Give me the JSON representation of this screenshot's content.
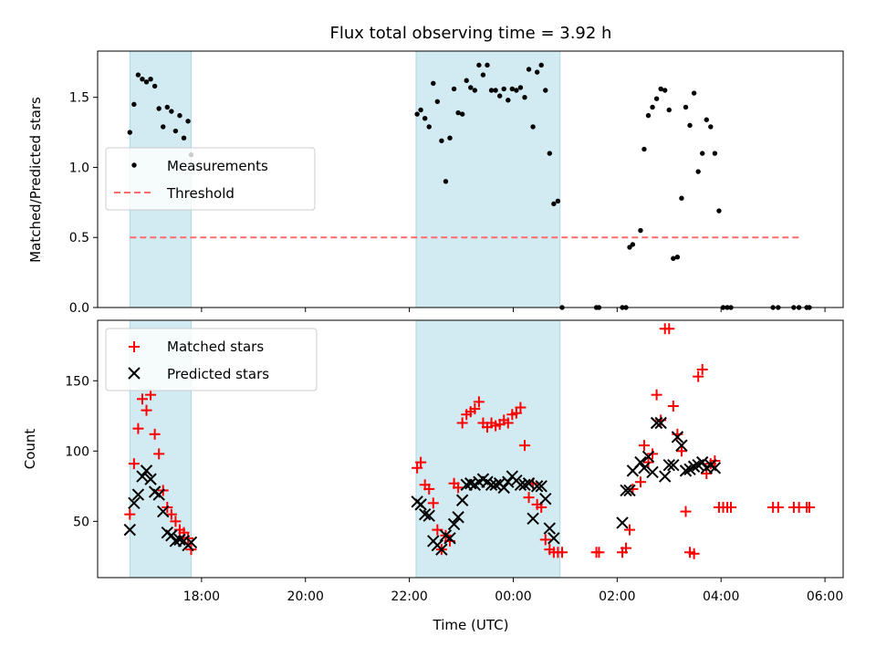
{
  "chart_data": [
    {
      "type": "scatter",
      "title": "Flux total observing time = 3.92 h",
      "xlabel": "",
      "ylabel": "Matched/Predicted stars",
      "xlim": [
        16.0,
        30.35
      ],
      "ylim": [
        0,
        1.83
      ],
      "yticks": [
        "0.0",
        "0.5",
        "1.0",
        "1.5"
      ],
      "xtick_hours": [
        18,
        20,
        22,
        24,
        26,
        28,
        30
      ],
      "grid": false,
      "legend_position": "center-left",
      "shaded_intervals": [
        [
          16.62,
          17.8
        ],
        [
          22.13,
          24.9
        ]
      ],
      "shade_color": "#add8e6",
      "threshold": {
        "name": "Threshold",
        "value": 0.5,
        "x_range": [
          16.62,
          29.5
        ],
        "color": "#ff6b6b"
      },
      "series": [
        {
          "name": "Measurements",
          "color": "#000000",
          "x": [
            16.62,
            16.7,
            16.78,
            16.86,
            16.94,
            17.02,
            17.1,
            17.18,
            17.26,
            17.34,
            17.42,
            17.5,
            17.58,
            17.66,
            17.74,
            17.8,
            22.15,
            22.22,
            22.3,
            22.38,
            22.46,
            22.54,
            22.62,
            22.7,
            22.78,
            22.86,
            22.94,
            23.02,
            23.1,
            23.18,
            23.26,
            23.34,
            23.42,
            23.5,
            23.58,
            23.66,
            23.74,
            23.82,
            23.9,
            23.98,
            24.06,
            24.14,
            24.22,
            24.3,
            24.38,
            24.46,
            24.54,
            24.62,
            24.7,
            24.78,
            24.86,
            24.94,
            25.6,
            25.65,
            26.1,
            26.17,
            26.24,
            26.3,
            26.45,
            26.52,
            26.6,
            26.68,
            26.76,
            26.84,
            26.92,
            27.0,
            27.08,
            27.16,
            27.24,
            27.32,
            27.4,
            27.48,
            27.56,
            27.64,
            27.72,
            27.8,
            27.88,
            27.96,
            28.04,
            28.12,
            28.19,
            29.0,
            29.1,
            29.4,
            29.5,
            29.65,
            29.7
          ],
          "y": [
            1.25,
            1.45,
            1.66,
            1.63,
            1.61,
            1.63,
            1.58,
            1.42,
            1.29,
            1.43,
            1.4,
            1.26,
            1.37,
            1.21,
            1.33,
            1.09,
            1.38,
            1.41,
            1.35,
            1.29,
            1.6,
            1.47,
            1.19,
            0.9,
            1.21,
            1.56,
            1.39,
            1.38,
            1.62,
            1.57,
            1.55,
            1.73,
            1.66,
            1.73,
            1.55,
            1.55,
            1.51,
            1.56,
            1.48,
            1.56,
            1.55,
            1.57,
            1.5,
            1.7,
            1.29,
            1.68,
            1.73,
            1.55,
            1.1,
            0.74,
            0.76,
            0.0,
            0.0,
            0.0,
            0.0,
            0.0,
            0.43,
            0.45,
            0.55,
            1.13,
            1.37,
            1.43,
            1.49,
            1.56,
            1.55,
            1.41,
            0.35,
            0.36,
            0.78,
            1.43,
            1.3,
            1.53,
            0.97,
            1.1,
            1.34,
            1.29,
            1.1,
            0.69,
            0.0,
            0.0,
            0.0,
            0.0,
            0.0,
            0.0,
            0.0,
            0.0,
            0.0
          ]
        }
      ]
    },
    {
      "type": "scatter",
      "title": "",
      "xlabel": "Time (UTC)",
      "ylabel": "Count",
      "xlim": [
        16.0,
        30.35
      ],
      "ylim": [
        10,
        193
      ],
      "yticks": [
        "50",
        "100",
        "150"
      ],
      "xtick_labels": [
        "18:00",
        "20:00",
        "22:00",
        "00:00",
        "02:00",
        "04:00",
        "06:00"
      ],
      "xtick_hours": [
        18,
        20,
        22,
        24,
        26,
        28,
        30
      ],
      "grid": false,
      "legend_position": "top-left",
      "shaded_intervals": [
        [
          16.62,
          17.8
        ],
        [
          22.13,
          24.9
        ]
      ],
      "shade_color": "#add8e6",
      "series": [
        {
          "name": "Matched stars",
          "marker": "plus",
          "color": "#ff0000",
          "x": [
            16.62,
            16.7,
            16.78,
            16.86,
            16.94,
            17.02,
            17.1,
            17.18,
            17.26,
            17.34,
            17.42,
            17.5,
            17.58,
            17.66,
            17.74,
            17.8,
            22.15,
            22.22,
            22.3,
            22.38,
            22.46,
            22.54,
            22.62,
            22.7,
            22.78,
            22.86,
            22.94,
            23.02,
            23.1,
            23.18,
            23.26,
            23.34,
            23.42,
            23.5,
            23.58,
            23.66,
            23.74,
            23.82,
            23.9,
            23.98,
            24.06,
            24.14,
            24.22,
            24.3,
            24.38,
            24.46,
            24.54,
            24.62,
            24.7,
            24.78,
            24.86,
            24.94,
            25.6,
            25.65,
            26.1,
            26.17,
            26.24,
            26.3,
            26.45,
            26.52,
            26.6,
            26.68,
            26.76,
            26.84,
            26.92,
            27.0,
            27.08,
            27.16,
            27.24,
            27.32,
            27.4,
            27.48,
            27.56,
            27.64,
            27.72,
            27.8,
            27.88,
            27.96,
            28.04,
            28.12,
            28.19,
            29.0,
            29.1,
            29.4,
            29.5,
            29.65,
            29.7
          ],
          "y": [
            55,
            91,
            116,
            137,
            129,
            140,
            112,
            98,
            72,
            60,
            55,
            50,
            44,
            42,
            38,
            30,
            88,
            92,
            76,
            73,
            63,
            44,
            30,
            40,
            36,
            77,
            74,
            120,
            126,
            128,
            130,
            135,
            120,
            117,
            120,
            118,
            119,
            122,
            120,
            126,
            127,
            131,
            104,
            67,
            77,
            62,
            60,
            37,
            30,
            28,
            28,
            28,
            28,
            28,
            28,
            31,
            44,
            73,
            78,
            104,
            92,
            98,
            140,
            122,
            187,
            187,
            132,
            112,
            100,
            57,
            28,
            27,
            153,
            158,
            84,
            91,
            93,
            60,
            60,
            60,
            60,
            60,
            60,
            60,
            60,
            60,
            60
          ]
        },
        {
          "name": "Predicted stars",
          "marker": "x",
          "color": "#000000",
          "x": [
            16.62,
            16.7,
            16.78,
            16.86,
            16.94,
            17.02,
            17.1,
            17.18,
            17.26,
            17.34,
            17.42,
            17.5,
            17.58,
            17.66,
            17.74,
            17.8,
            22.15,
            22.22,
            22.3,
            22.38,
            22.46,
            22.54,
            22.62,
            22.7,
            22.78,
            22.86,
            22.94,
            23.02,
            23.1,
            23.18,
            23.26,
            23.34,
            23.42,
            23.5,
            23.58,
            23.66,
            23.74,
            23.82,
            23.9,
            23.98,
            24.06,
            24.14,
            24.22,
            24.3,
            24.38,
            24.46,
            24.54,
            24.62,
            24.7,
            24.78,
            26.1,
            26.17,
            26.24,
            26.3,
            26.45,
            26.52,
            26.6,
            26.68,
            26.76,
            26.84,
            26.92,
            27.0,
            27.08,
            27.16,
            27.24,
            27.32,
            27.4,
            27.48,
            27.56,
            27.64,
            27.72,
            27.8,
            27.88
          ],
          "y": [
            44,
            63,
            69,
            82,
            86,
            80,
            71,
            69,
            57,
            42,
            40,
            36,
            37,
            36,
            33,
            35,
            64,
            62,
            55,
            54,
            36,
            33,
            30,
            40,
            38,
            48,
            53,
            65,
            76,
            77,
            76,
            78,
            80,
            78,
            76,
            76,
            77,
            74,
            78,
            82,
            79,
            76,
            76,
            77,
            52,
            75,
            75,
            66,
            45,
            38,
            49,
            72,
            72,
            86,
            92,
            88,
            96,
            85,
            120,
            120,
            82,
            90,
            90,
            110,
            104,
            86,
            87,
            89,
            90,
            92,
            88,
            90,
            88
          ]
        }
      ]
    }
  ]
}
